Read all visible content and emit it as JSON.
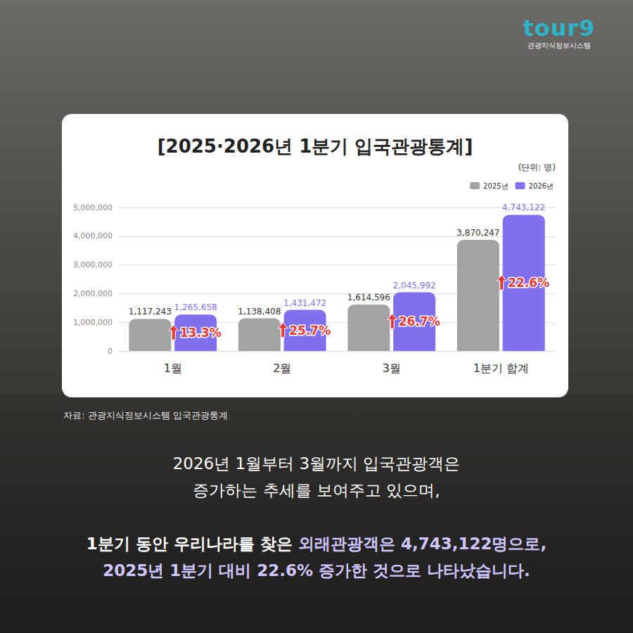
{
  "chart_data": {
    "type": "bar",
    "title": "[2025·2026년 1분기 입국관광통계]",
    "y_label": "(단위: 명)",
    "categories": [
      "1월",
      "2월",
      "3월",
      "1분기 합계"
    ],
    "series": [
      {
        "name": "2025년",
        "color": "#a3a3a3",
        "values": [
          1117243,
          1138408,
          1614596,
          3870247
        ],
        "value_labels": [
          "1,117,243",
          "1,138,408",
          "1,614,596",
          "3,870,247"
        ]
      },
      {
        "name": "2026년",
        "color": "#8070ee",
        "values": [
          1265658,
          1431472,
          2045992,
          4743122
        ],
        "value_labels": [
          "1,265,658",
          "1,431,472",
          "2,045,992",
          "4,743,122"
        ]
      }
    ],
    "ylim": [
      0,
      5000000
    ],
    "yticks": [
      0,
      {
        "value": 1000000,
        "label": "1,000,000"
      },
      {
        "value": 2000000,
        "label": "2,000,000"
      },
      {
        "value": 3000000,
        "label": "3,000,000"
      },
      {
        "value": 4000000,
        "label": "4,000,000"
      },
      {
        "value": 5000000,
        "label": "5,000,000"
      }
    ],
    "grid": true,
    "legend": "top-right",
    "data_labels": true,
    "annotations": [
      {
        "category": "1월",
        "value": 13.3,
        "label": "13.3%"
      },
      {
        "category": "2월",
        "value": 25.7,
        "label": "25.7%"
      },
      {
        "category": "3월",
        "value": 26.7,
        "label": "26.7%"
      },
      {
        "category": "1분기 합계",
        "value": 22.6,
        "label": "22.6%"
      }
    ]
  },
  "logo": {
    "name": "tour9",
    "subtitle": "관광지식정보시스템"
  },
  "source": "자료: 관광지식정보시스템 입국관광통계",
  "body": [
    [
      {
        "text": "2026년 1월부터 3월까지 입국관광객은"
      }
    ],
    [
      {
        "text": "증가하는 추세를 보여주고 있으며,"
      }
    ],
    [
      {
        "text": "1분기 동안 우리나라를 찾은 "
      },
      {
        "text": "외래관광객은 4,743,122명으로,",
        "color": "#cfc6ff"
      }
    ],
    [
      {
        "text": "2025년 1분기 대비 22.6% 증가한 것으로 나타났습니다.",
        "color": "#cfc6ff"
      }
    ]
  ]
}
